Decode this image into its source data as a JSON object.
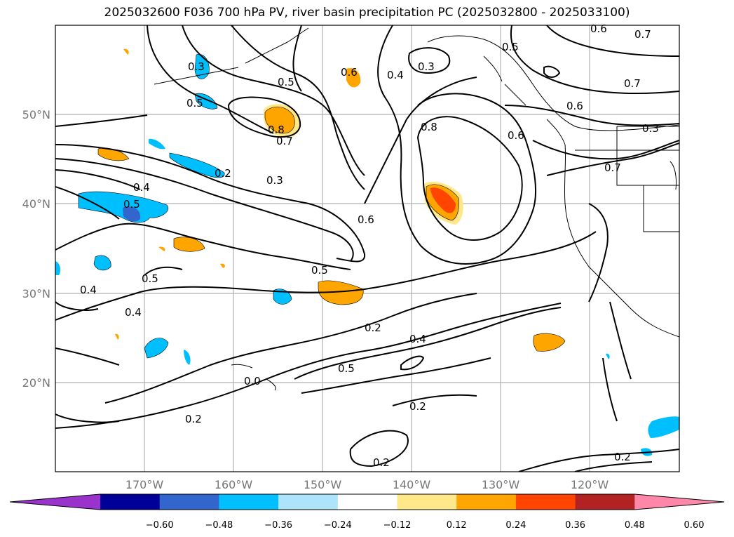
{
  "title": "2025032600 F036 700 hPa PV, river basin precipitation PC (2025032800 - 2025033100)",
  "axes": {
    "lon_labels": [
      "170°W",
      "160°W",
      "150°W",
      "140°W",
      "130°W",
      "120°W"
    ],
    "lat_labels": [
      "50°N",
      "40°N",
      "30°N",
      "20°N"
    ]
  },
  "contour_labels": [
    "0.6",
    "0.7",
    "0.3",
    "0.5",
    "0.6",
    "0.4",
    "0.5",
    "0.3",
    "0.7",
    "0.5",
    "0.6",
    "0.8",
    "0.7",
    "0.8",
    "0.3",
    "0.6",
    "0.7",
    "0.2",
    "0.3",
    "0.4",
    "0.5",
    "0.6",
    "0.5",
    "0.5",
    "0.4",
    "0.4",
    "0.2",
    "0.4",
    "0.5",
    "0.0",
    "0.2",
    "0.2",
    "0.2",
    "0.2"
  ],
  "colorbar": {
    "tick_labels": [
      "−0.60",
      "−0.48",
      "−0.36",
      "−0.24",
      "−0.12",
      "0.12",
      "0.24",
      "0.36",
      "0.48",
      "0.60"
    ],
    "colors": [
      "#9933cc",
      "#000099",
      "#3366cc",
      "#00bfff",
      "#aee4fb",
      "#ffffff",
      "#ffe88a",
      "#ffa500",
      "#ff4500",
      "#b22222",
      "#ff88aa"
    ]
  }
}
